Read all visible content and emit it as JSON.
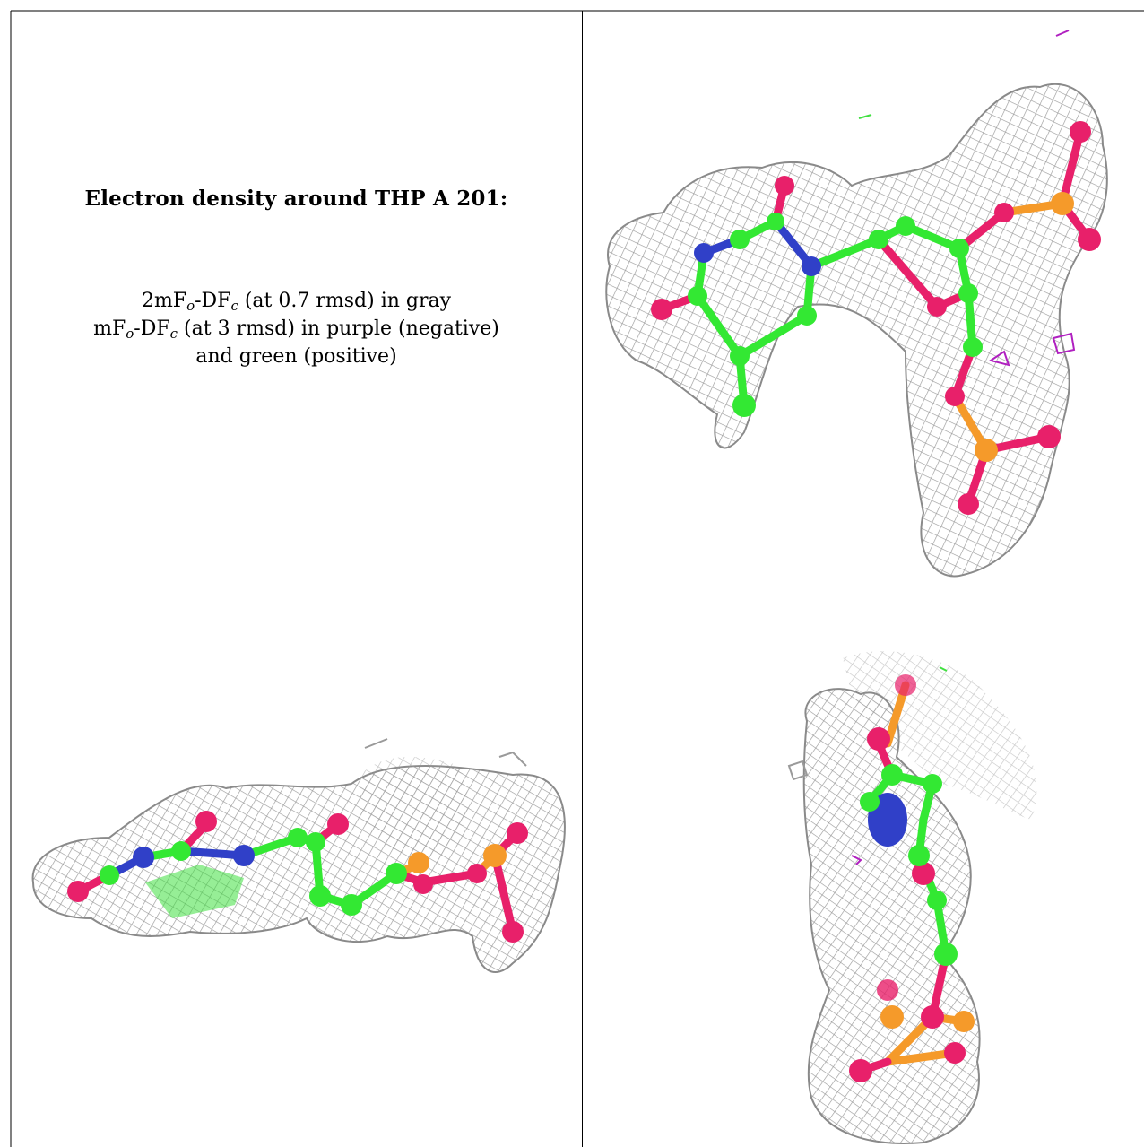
{
  "panel_text": {
    "title": "Electron density around THP A 201:",
    "line1": {
      "prefix": "2mF",
      "sub1": "o",
      "mid": "-DF",
      "sub2": "c",
      "suffix": " (at 0.7 rmsd) in gray"
    },
    "line2": {
      "prefix": "mF",
      "sub1": "o",
      "mid": "-DF",
      "sub2": "c",
      "suffix": " (at 3 rmsd) in purple (negative)"
    },
    "line3": "and green (positive)"
  },
  "colors": {
    "mesh": "#9a9a9a",
    "carbon": "#33e833",
    "nitrogen": "#3040c8",
    "oxygen": "#e8206a",
    "phosphorus": "#f59a2a",
    "negative": "#b020c0",
    "positive": "#40e040"
  },
  "views": [
    "view-top",
    "view-side",
    "view-end"
  ]
}
